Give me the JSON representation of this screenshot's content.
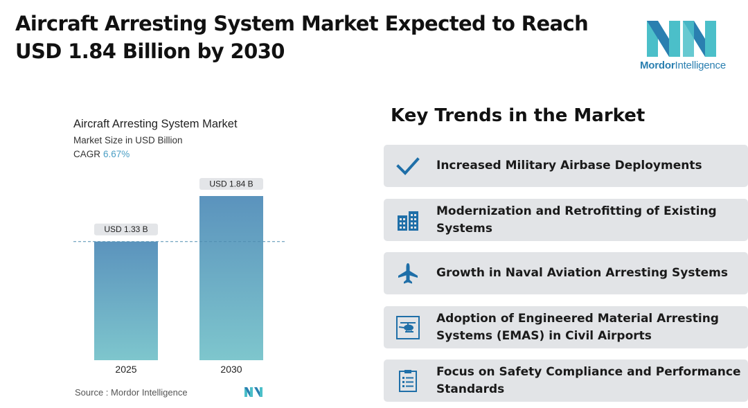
{
  "header": {
    "title": "Aircraft Arresting System Market Expected to Reach USD 1.84 Billion by 2030"
  },
  "logo": {
    "brand": "Mordor",
    "brand_suffix": "Intelligence",
    "icon": "mordor-intelligence-logo"
  },
  "chart": {
    "title": "Aircraft Arresting System Market",
    "subtitle": "Market Size in USD Billion",
    "cagr_label": "CAGR",
    "cagr_value": "6.67%",
    "source": "Source :  Mordor Intelligence"
  },
  "chart_data": {
    "type": "bar",
    "title": "Aircraft Arresting System Market",
    "subtitle": "Market Size in USD Billion",
    "categories": [
      "2025",
      "2030"
    ],
    "values": [
      1.33,
      1.84
    ],
    "data_labels": [
      "USD 1.33 B",
      "USD 1.84 B"
    ],
    "unit": "USD Billion",
    "cagr": "6.67%",
    "ylim": [
      0,
      1.84
    ],
    "grid": false,
    "reference_line": {
      "value": 1.33,
      "style": "dashed"
    },
    "colors": {
      "bar_top": "#5b93bd",
      "bar_bottom": "#7ec6cd",
      "label_bg": "#e3e5e8",
      "dash": "#4f8db0"
    }
  },
  "trends": {
    "title": "Key Trends in the Market",
    "items": [
      {
        "label": "Increased Military Airbase Deployments",
        "icon": "checkmark-icon"
      },
      {
        "label": "Modernization and Retrofitting of Existing Systems",
        "icon": "buildings-icon"
      },
      {
        "label": "Growth in Naval Aviation Arresting Systems",
        "icon": "airplane-icon"
      },
      {
        "label": "Adoption of Engineered Material Arresting Systems (EMAS) in Civil Airports",
        "icon": "helicopter-icon"
      },
      {
        "label": "Focus on Safety Compliance and Performance Standards",
        "icon": "checklist-icon"
      }
    ]
  },
  "colors": {
    "accent": "#1f6fa8",
    "card_bg": "#e2e4e7",
    "logo_teal": "#4bbfc9",
    "logo_blue": "#2a7fb0"
  }
}
